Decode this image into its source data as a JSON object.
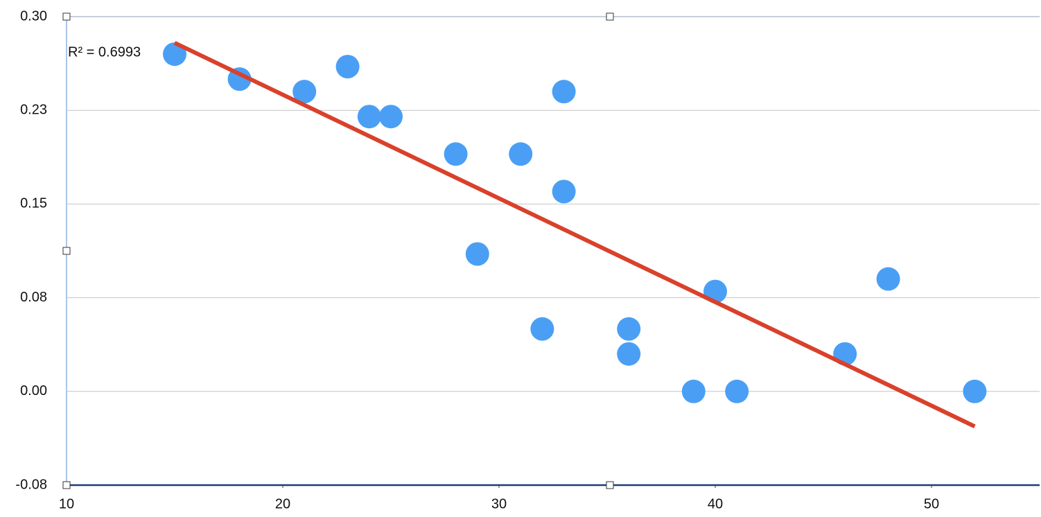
{
  "chart_data": {
    "type": "scatter",
    "x": [
      15,
      18,
      21,
      23,
      24,
      25,
      28,
      29,
      31,
      32,
      33,
      33,
      36,
      36,
      39,
      40,
      41,
      46,
      48,
      52
    ],
    "values": [
      0.27,
      0.25,
      0.24,
      0.26,
      0.22,
      0.22,
      0.19,
      0.11,
      0.19,
      0.05,
      0.24,
      0.16,
      0.05,
      0.03,
      0,
      0.08,
      0,
      0.03,
      0.09,
      0
    ],
    "color": "#4a9ff5",
    "trendline": {
      "x": [
        15,
        52
      ],
      "values": [
        0.279,
        -0.028
      ],
      "color": "#d9412b"
    },
    "annotation": "R² = 0.6993",
    "xlim": [
      10,
      55
    ],
    "xticks": [
      10,
      20,
      30,
      40,
      50
    ],
    "ylim": [
      -0.075,
      0.3
    ],
    "yticks": [
      {
        "value": -0.075,
        "label": "-0.08"
      },
      {
        "value": 0,
        "label": "0.00"
      },
      {
        "value": 0.075,
        "label": "0.08"
      },
      0.15,
      {
        "value": 0.225,
        "label": "0.23"
      },
      {
        "value": 0.3,
        "label": "0.30"
      }
    ],
    "grid": true
  }
}
